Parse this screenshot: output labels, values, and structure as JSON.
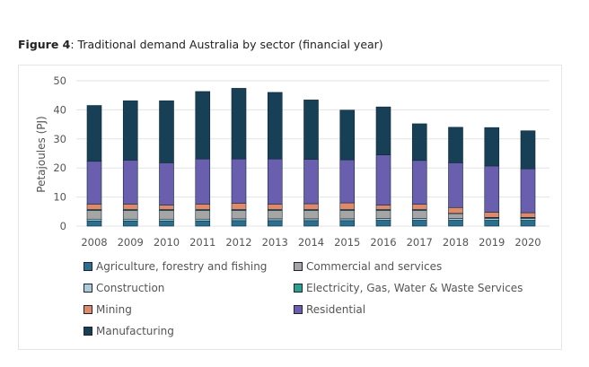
{
  "figure_label": "Figure 4",
  "figure_title": ": Traditional demand Australia by sector (financial year)",
  "chart_data": {
    "type": "bar",
    "stacked": true,
    "title": "Figure 4: Traditional demand Australia by sector (financial year)",
    "xlabel": "",
    "ylabel": "Petajoules (PJ)",
    "ylim": [
      0,
      50
    ],
    "yticks": [
      0,
      10,
      20,
      30,
      40,
      50
    ],
    "grid": true,
    "legend_position": "bottom",
    "categories": [
      "2008",
      "2009",
      "2010",
      "2011",
      "2012",
      "2013",
      "2014",
      "2015",
      "2016",
      "2017",
      "2018",
      "2019",
      "2020"
    ],
    "series": [
      {
        "name": "Agriculture, forestry and fishing",
        "color": "#2a6f8e",
        "values": [
          1.8,
          1.8,
          1.8,
          1.8,
          1.9,
          1.9,
          1.9,
          1.9,
          2.0,
          2.0,
          2.0,
          2.0,
          2.0
        ]
      },
      {
        "name": "Construction",
        "color": "#a9cdd8",
        "values": [
          0.6,
          0.6,
          0.6,
          0.6,
          0.6,
          0.6,
          0.6,
          0.6,
          0.6,
          0.6,
          0.6,
          0.6,
          0.6
        ]
      },
      {
        "name": "Commercial and services",
        "color": "#a5a5a5",
        "values": [
          3.0,
          3.0,
          3.0,
          3.0,
          2.9,
          2.9,
          2.9,
          2.9,
          2.8,
          2.8,
          1.7,
          0.3,
          0.3
        ]
      },
      {
        "name": "Electricity, Gas, Water & Waste Services",
        "color": "#2aa091",
        "values": [
          0.3,
          0.3,
          0.3,
          0.3,
          0.3,
          0.3,
          0.3,
          0.3,
          0.3,
          0.3,
          0.1,
          0.1,
          0.1
        ]
      },
      {
        "name": "Mining",
        "color": "#e08a6c",
        "values": [
          1.9,
          1.9,
          1.5,
          1.9,
          2.2,
          1.9,
          2.0,
          2.3,
          1.5,
          1.8,
          2.0,
          1.8,
          1.6
        ]
      },
      {
        "name": "Residential",
        "color": "#6a5eae",
        "values": [
          14.7,
          15.1,
          14.6,
          15.5,
          15.2,
          15.5,
          15.3,
          14.8,
          17.3,
          15.1,
          15.4,
          15.9,
          15.1
        ]
      },
      {
        "name": "Manufacturing",
        "color": "#173f56",
        "values": [
          19.2,
          20.4,
          21.3,
          23.2,
          24.3,
          22.9,
          20.4,
          17.1,
          16.5,
          12.6,
          12.2,
          13.2,
          13.1
        ]
      }
    ],
    "legend_order": [
      0,
      2,
      1,
      3,
      4,
      5,
      6
    ]
  }
}
